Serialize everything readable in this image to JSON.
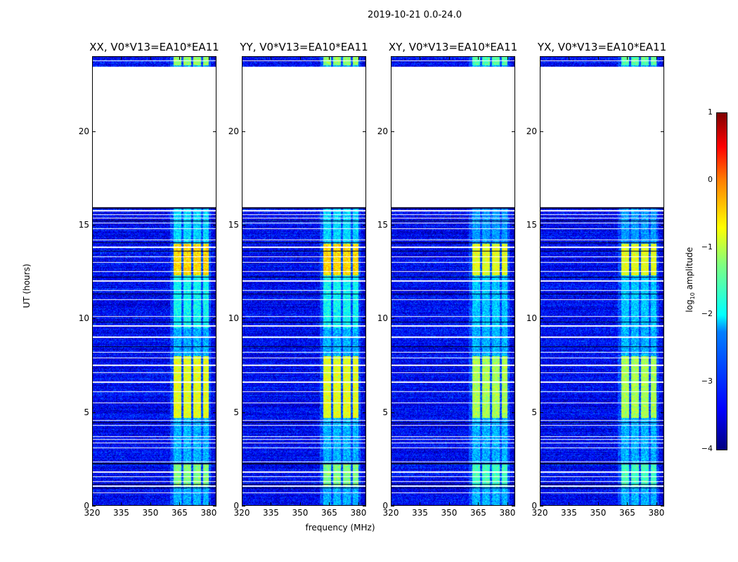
{
  "suptitle": "2019-10-21 0.0-24.0",
  "chart_data": {
    "type": "heatmap",
    "title": "2019-10-21 0.0-24.0",
    "xlabel": "frequency (MHz)",
    "ylabel": "UT (hours)",
    "xlim": [
      320,
      384
    ],
    "ylim": [
      0,
      24
    ],
    "xticks": [
      320,
      335,
      350,
      365,
      380
    ],
    "yticks": [
      0,
      5,
      10,
      15,
      20
    ],
    "xtick_labels": [
      "320",
      "335",
      "350",
      "365",
      "380"
    ],
    "ytick_labels": [
      "0",
      "5",
      "10",
      "15",
      "20"
    ],
    "panels": [
      {
        "title": "XX, V0*V13=EA10*EA11"
      },
      {
        "title": "YY, V0*V13=EA10*EA11"
      },
      {
        "title": "XY, V0*V13=EA10*EA11"
      },
      {
        "title": "YX, V0*V13=EA10*EA11"
      }
    ],
    "colorbar": {
      "label_prefix": "log",
      "label_sub": "10",
      "label_suffix": " amplitude",
      "range": [
        -4,
        1
      ],
      "ticks": [
        "1",
        "0",
        "−1",
        "−2",
        "−3",
        "−4"
      ],
      "colormap": "jet"
    },
    "background_level": -3.4,
    "flagged_hours": [
      [
        15.95,
        23.45
      ]
    ],
    "bright_channels": [
      [
        362,
        366
      ],
      [
        367,
        371
      ],
      [
        372,
        376
      ],
      [
        377,
        380
      ]
    ],
    "bright_intervals": [
      {
        "hours": [
          4.7,
          8.0
        ],
        "level": -1.0
      },
      {
        "hours": [
          12.3,
          14.0
        ],
        "level": -0.7
      },
      {
        "hours": [
          9.5,
          12.3
        ],
        "level": -2.1
      },
      {
        "hours": [
          1.0,
          2.3
        ],
        "level": -1.5
      },
      {
        "hours": [
          14.0,
          15.9
        ],
        "level": -2.3
      },
      {
        "hours": [
          23.5,
          24
        ],
        "level": -1.4
      }
    ],
    "white_rows": [
      0.7,
      1.05,
      1.3,
      1.55,
      1.8,
      2.35,
      3.1,
      3.35,
      3.55,
      3.7,
      4.3,
      4.55,
      5.5,
      6.1,
      6.6,
      7.1,
      7.5,
      7.9,
      8.2,
      9.0,
      9.6,
      10.1,
      11.0,
      11.5,
      12.0,
      12.5,
      13.0,
      13.3,
      13.8,
      14.2,
      14.8,
      15.1,
      15.35,
      15.55,
      15.75,
      23.75
    ],
    "black_rows": [
      0.95,
      1.15,
      2.25,
      4.45,
      8.5,
      9.8,
      11.3,
      12.2,
      13.6,
      14.05,
      15.2,
      15.9
    ]
  }
}
